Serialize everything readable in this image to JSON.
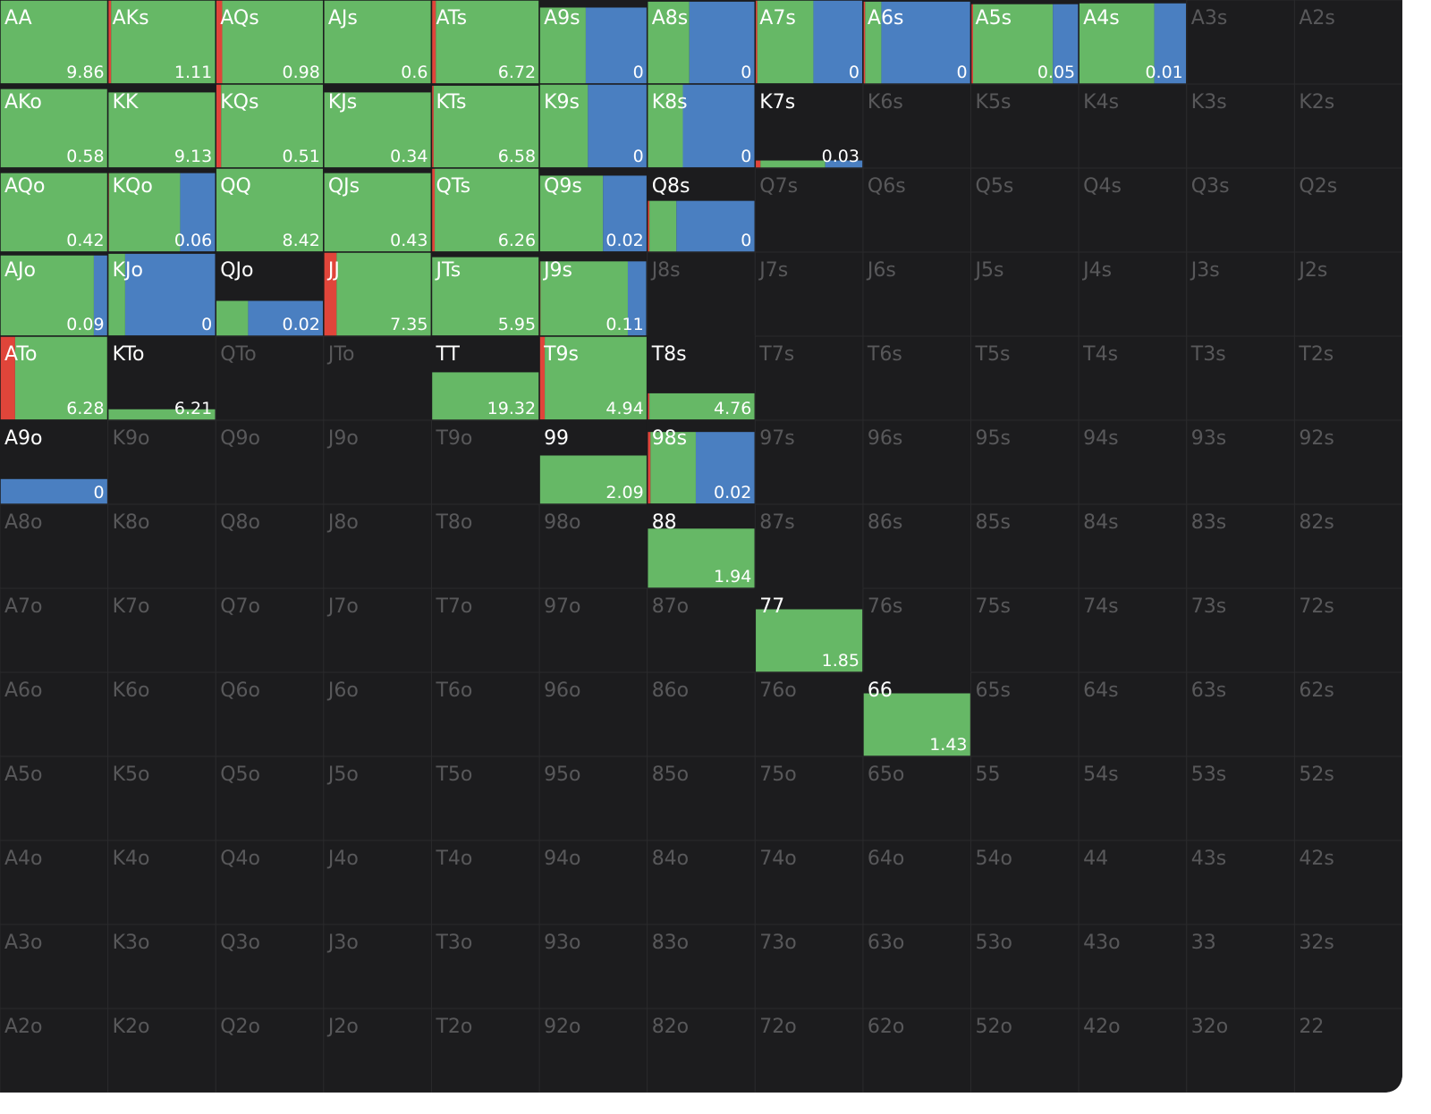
{
  "grid": {
    "rows": [
      [
        {
          "label": "AA",
          "ev": 9.86,
          "freq": 1,
          "mix": [
            0,
            1,
            0
          ]
        },
        {
          "label": "AKs",
          "ev": 1.11,
          "freq": 1,
          "mix": [
            0.03,
            0.97,
            0
          ]
        },
        {
          "label": "AQs",
          "ev": 0.98,
          "freq": 1,
          "mix": [
            0.06,
            0.94,
            0
          ]
        },
        {
          "label": "AJs",
          "ev": 0.6,
          "freq": 1,
          "mix": [
            0,
            1,
            0
          ]
        },
        {
          "label": "ATs",
          "ev": 6.72,
          "freq": 1,
          "mix": [
            0.04,
            0.96,
            0
          ]
        },
        {
          "label": "A9s",
          "ev": 0,
          "freq": 0.91,
          "mix": [
            0,
            0.43,
            0.57
          ]
        },
        {
          "label": "A8s",
          "ev": 0,
          "freq": 0.98,
          "mix": [
            0,
            0.39,
            0.61
          ]
        },
        {
          "label": "A7s",
          "ev": 0,
          "freq": 1,
          "mix": [
            0.02,
            0.52,
            0.46
          ]
        },
        {
          "label": "A6s",
          "ev": 0,
          "freq": 0.98,
          "mix": [
            0.02,
            0.15,
            0.83
          ]
        },
        {
          "label": "A5s",
          "ev": 0.05,
          "freq": 0.95,
          "mix": [
            0.02,
            0.74,
            0.24
          ]
        },
        {
          "label": "A4s",
          "ev": 0.01,
          "freq": 0.96,
          "mix": [
            0,
            0.7,
            0.3
          ]
        },
        {
          "label": "A3s"
        },
        {
          "label": "A2s"
        }
      ],
      [
        {
          "label": "AKo",
          "ev": 0.58,
          "freq": 0.94,
          "mix": [
            0,
            1,
            0
          ]
        },
        {
          "label": "KK",
          "ev": 9.13,
          "freq": 0.9,
          "mix": [
            0,
            1,
            0
          ]
        },
        {
          "label": "KQs",
          "ev": 0.51,
          "freq": 1,
          "mix": [
            0.05,
            0.95,
            0
          ]
        },
        {
          "label": "KJs",
          "ev": 0.34,
          "freq": 0.9,
          "mix": [
            0,
            1,
            0
          ]
        },
        {
          "label": "KTs",
          "ev": 6.58,
          "freq": 0.98,
          "mix": [
            0.02,
            0.98,
            0
          ]
        },
        {
          "label": "K9s",
          "ev": 0,
          "freq": 1,
          "mix": [
            0,
            0.45,
            0.55
          ]
        },
        {
          "label": "K8s",
          "ev": 0,
          "freq": 1,
          "mix": [
            0,
            0.33,
            0.67
          ]
        },
        {
          "label": "K7s",
          "ev": 0.03,
          "freq": 0.09,
          "mix": [
            0.05,
            0.6,
            0.35
          ]
        },
        {
          "label": "K6s"
        },
        {
          "label": "K5s"
        },
        {
          "label": "K4s"
        },
        {
          "label": "K3s"
        },
        {
          "label": "K2s"
        }
      ],
      [
        {
          "label": "AQo",
          "ev": 0.42,
          "freq": 0.94,
          "mix": [
            0,
            1,
            0
          ]
        },
        {
          "label": "KQo",
          "ev": 0.06,
          "freq": 0.94,
          "mix": [
            0.01,
            0.66,
            0.33
          ]
        },
        {
          "label": "QQ",
          "ev": 8.42,
          "freq": 1,
          "mix": [
            0,
            1,
            0
          ]
        },
        {
          "label": "QJs",
          "ev": 0.43,
          "freq": 0.94,
          "mix": [
            0,
            1,
            0
          ]
        },
        {
          "label": "QTs",
          "ev": 6.26,
          "freq": 1,
          "mix": [
            0.03,
            0.97,
            0
          ]
        },
        {
          "label": "Q9s",
          "ev": 0.02,
          "freq": 0.91,
          "mix": [
            0,
            0.59,
            0.41
          ]
        },
        {
          "label": "Q8s",
          "ev": 0,
          "freq": 0.61,
          "mix": [
            0.02,
            0.25,
            0.73
          ]
        },
        {
          "label": "Q7s"
        },
        {
          "label": "Q6s"
        },
        {
          "label": "Q5s"
        },
        {
          "label": "Q4s"
        },
        {
          "label": "Q3s"
        },
        {
          "label": "Q2s"
        }
      ],
      [
        {
          "label": "AJo",
          "ev": 0.09,
          "freq": 0.96,
          "mix": [
            0,
            0.87,
            0.13
          ]
        },
        {
          "label": "KJo",
          "ev": 0,
          "freq": 0.98,
          "mix": [
            0,
            0.16,
            0.84
          ]
        },
        {
          "label": "QJo",
          "ev": 0.02,
          "freq": 0.42,
          "mix": [
            0,
            0.3,
            0.7
          ]
        },
        {
          "label": "JJ",
          "ev": 7.35,
          "freq": 1,
          "mix": [
            0.12,
            0.88,
            0
          ]
        },
        {
          "label": "JTs",
          "ev": 5.95,
          "freq": 0.94,
          "mix": [
            0,
            1,
            0
          ]
        },
        {
          "label": "J9s",
          "ev": 0.11,
          "freq": 0.89,
          "mix": [
            0.01,
            0.81,
            0.17
          ]
        },
        {
          "label": "J8s"
        },
        {
          "label": "J7s"
        },
        {
          "label": "J6s"
        },
        {
          "label": "J5s"
        },
        {
          "label": "J4s"
        },
        {
          "label": "J3s"
        },
        {
          "label": "J2s"
        }
      ],
      [
        {
          "label": "ATo",
          "ev": 6.28,
          "freq": 1,
          "mix": [
            0.14,
            0.86,
            0
          ]
        },
        {
          "label": "KTo",
          "ev": 6.21,
          "freq": 0.13,
          "mix": [
            0,
            1,
            0
          ]
        },
        {
          "label": "QTo"
        },
        {
          "label": "JTo"
        },
        {
          "label": "TT",
          "ev": 19.32,
          "freq": 0.57,
          "mix": [
            0,
            1,
            0
          ]
        },
        {
          "label": "T9s",
          "ev": 4.94,
          "freq": 1,
          "mix": [
            0.05,
            0.95,
            0
          ]
        },
        {
          "label": "T8s",
          "ev": 4.76,
          "freq": 0.32,
          "mix": [
            0.02,
            0.98,
            0
          ]
        },
        {
          "label": "T7s"
        },
        {
          "label": "T6s"
        },
        {
          "label": "T5s"
        },
        {
          "label": "T4s"
        },
        {
          "label": "T3s"
        },
        {
          "label": "T2s"
        }
      ],
      [
        {
          "label": "A9o",
          "ev": 0,
          "freq": 0.3,
          "mix": [
            0,
            0,
            1
          ]
        },
        {
          "label": "K9o"
        },
        {
          "label": "Q9o"
        },
        {
          "label": "J9o"
        },
        {
          "label": "T9o"
        },
        {
          "label": "99",
          "ev": 2.09,
          "freq": 0.58,
          "mix": [
            0,
            1,
            0
          ]
        },
        {
          "label": "98s",
          "ev": 0.02,
          "freq": 0.86,
          "mix": [
            0.03,
            0.42,
            0.55
          ]
        },
        {
          "label": "97s"
        },
        {
          "label": "96s"
        },
        {
          "label": "95s"
        },
        {
          "label": "94s"
        },
        {
          "label": "93s"
        },
        {
          "label": "92s"
        }
      ],
      [
        {
          "label": "A8o"
        },
        {
          "label": "K8o"
        },
        {
          "label": "Q8o"
        },
        {
          "label": "J8o"
        },
        {
          "label": "T8o"
        },
        {
          "label": "98o"
        },
        {
          "label": "88",
          "ev": 1.94,
          "freq": 0.71,
          "mix": [
            0,
            1,
            0
          ]
        },
        {
          "label": "87s"
        },
        {
          "label": "86s"
        },
        {
          "label": "85s"
        },
        {
          "label": "84s"
        },
        {
          "label": "83s"
        },
        {
          "label": "82s"
        }
      ],
      [
        {
          "label": "A7o"
        },
        {
          "label": "K7o"
        },
        {
          "label": "Q7o"
        },
        {
          "label": "J7o"
        },
        {
          "label": "T7o"
        },
        {
          "label": "97o"
        },
        {
          "label": "87o"
        },
        {
          "label": "77",
          "ev": 1.85,
          "freq": 0.75,
          "mix": [
            0,
            1,
            0
          ]
        },
        {
          "label": "76s"
        },
        {
          "label": "75s"
        },
        {
          "label": "74s"
        },
        {
          "label": "73s"
        },
        {
          "label": "72s"
        }
      ],
      [
        {
          "label": "A6o"
        },
        {
          "label": "K6o"
        },
        {
          "label": "Q6o"
        },
        {
          "label": "J6o"
        },
        {
          "label": "T6o"
        },
        {
          "label": "96o"
        },
        {
          "label": "86o"
        },
        {
          "label": "76o"
        },
        {
          "label": "66",
          "ev": 1.43,
          "freq": 0.75,
          "mix": [
            0,
            1,
            0
          ]
        },
        {
          "label": "65s"
        },
        {
          "label": "64s"
        },
        {
          "label": "63s"
        },
        {
          "label": "62s"
        }
      ],
      [
        {
          "label": "A5o"
        },
        {
          "label": "K5o"
        },
        {
          "label": "Q5o"
        },
        {
          "label": "J5o"
        },
        {
          "label": "T5o"
        },
        {
          "label": "95o"
        },
        {
          "label": "85o"
        },
        {
          "label": "75o"
        },
        {
          "label": "65o"
        },
        {
          "label": "55"
        },
        {
          "label": "54s"
        },
        {
          "label": "53s"
        },
        {
          "label": "52s"
        }
      ],
      [
        {
          "label": "A4o"
        },
        {
          "label": "K4o"
        },
        {
          "label": "Q4o"
        },
        {
          "label": "J4o"
        },
        {
          "label": "T4o"
        },
        {
          "label": "94o"
        },
        {
          "label": "84o"
        },
        {
          "label": "74o"
        },
        {
          "label": "64o"
        },
        {
          "label": "54o"
        },
        {
          "label": "44"
        },
        {
          "label": "43s"
        },
        {
          "label": "42s"
        }
      ],
      [
        {
          "label": "A3o"
        },
        {
          "label": "K3o"
        },
        {
          "label": "Q3o"
        },
        {
          "label": "J3o"
        },
        {
          "label": "T3o"
        },
        {
          "label": "93o"
        },
        {
          "label": "83o"
        },
        {
          "label": "73o"
        },
        {
          "label": "63o"
        },
        {
          "label": "53o"
        },
        {
          "label": "43o"
        },
        {
          "label": "33"
        },
        {
          "label": "32s"
        }
      ],
      [
        {
          "label": "A2o"
        },
        {
          "label": "K2o"
        },
        {
          "label": "Q2o"
        },
        {
          "label": "J2o"
        },
        {
          "label": "T2o"
        },
        {
          "label": "92o"
        },
        {
          "label": "82o"
        },
        {
          "label": "72o"
        },
        {
          "label": "62o"
        },
        {
          "label": "52o"
        },
        {
          "label": "42o"
        },
        {
          "label": "32o"
        },
        {
          "label": "22"
        }
      ]
    ]
  }
}
